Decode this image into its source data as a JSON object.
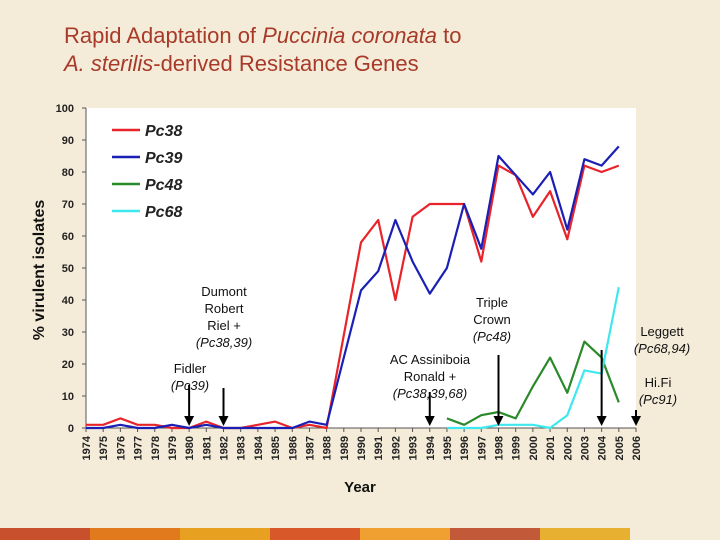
{
  "slide": {
    "title_part1": "Rapid Adaptation of ",
    "title_italic1": "Puccinia coronata",
    "title_part2": " to",
    "title_italic2": "A. sterilis",
    "title_part3": "-derived Resistance Genes"
  },
  "footer_colors": [
    "#c9502d",
    "#e07a1c",
    "#e8a020",
    "#d8582a",
    "#f0a030",
    "#c25a3a",
    "#e8b030"
  ],
  "chart_data": {
    "type": "line",
    "xlabel": "Year",
    "ylabel": "% virulent isolates",
    "ylim": [
      0,
      100
    ],
    "yticks": [
      0,
      10,
      20,
      30,
      40,
      50,
      60,
      70,
      80,
      90,
      100
    ],
    "xlim": [
      1974,
      2006
    ],
    "xticks": [
      "1974",
      "1975",
      "1976",
      "1977",
      "1978",
      "1979",
      "1980",
      "1981",
      "1982",
      "1983",
      "1984",
      "1985",
      "1986",
      "1987",
      "1988",
      "1989",
      "1990",
      "1991",
      "1992",
      "1993",
      "1994",
      "1995",
      "1996",
      "1997",
      "1998",
      "1999",
      "2000",
      "2001",
      "2002",
      "2003",
      "2004",
      "2005",
      "2006"
    ],
    "legend_position": "top-left",
    "series": [
      {
        "name": "Pc38",
        "color": "#e8232a",
        "x": [
          1974,
          1975,
          1976,
          1977,
          1978,
          1979,
          1980,
          1981,
          1982,
          1983,
          1984,
          1985,
          1986,
          1987,
          1988,
          1990,
          1991,
          1992,
          1993,
          1994,
          1996,
          1997,
          1998,
          1999,
          2000,
          2001,
          2002,
          2003,
          2004,
          2005
        ],
        "y": [
          1,
          1,
          3,
          1,
          1,
          0,
          0,
          2,
          0,
          0,
          1,
          2,
          0,
          1,
          0,
          58,
          65,
          40,
          66,
          70,
          70,
          52,
          82,
          79,
          66,
          74,
          59,
          82,
          80,
          82
        ]
      },
      {
        "name": "Pc39",
        "color": "#1a1fb5",
        "x": [
          1974,
          1975,
          1976,
          1977,
          1978,
          1979,
          1980,
          1981,
          1982,
          1983,
          1984,
          1985,
          1986,
          1987,
          1988,
          1990,
          1991,
          1992,
          1993,
          1994,
          1995,
          1996,
          1997,
          1998,
          1999,
          2000,
          2001,
          2002,
          2003,
          2004,
          2005
        ],
        "y": [
          0,
          0,
          1,
          0,
          0,
          1,
          0,
          1,
          0,
          0,
          0,
          0,
          0,
          2,
          1,
          43,
          49,
          65,
          52,
          42,
          50,
          70,
          56,
          85,
          79,
          73,
          80,
          62,
          84,
          82,
          88
        ]
      },
      {
        "name": "Pc48",
        "color": "#2a8a2a",
        "x": [
          1995,
          1996,
          1997,
          1998,
          1999,
          2000,
          2001,
          2002,
          2003,
          2004,
          2005
        ],
        "y": [
          3,
          1,
          4,
          5,
          3,
          13,
          22,
          11,
          27,
          22,
          8
        ]
      },
      {
        "name": "Pc68",
        "color": "#3ee8ee",
        "x": [
          1995,
          1996,
          1997,
          1998,
          1999,
          2000,
          2001,
          2002,
          2003,
          2004,
          2005
        ],
        "y": [
          0,
          0,
          0,
          1,
          1,
          1,
          0,
          4,
          18,
          17,
          44
        ]
      }
    ],
    "annotations": [
      {
        "label": [
          "Fidler",
          "(Pc39)"
        ],
        "arrow_year": 1980
      },
      {
        "label": [
          "Dumont",
          "Robert",
          "Riel +",
          "(Pc38,39)"
        ],
        "arrow_year": 1982
      },
      {
        "label": [
          "AC Assiniboia",
          "Ronald +",
          "(Pc38,39,68)"
        ],
        "arrow_year": 1994
      },
      {
        "label": [
          "Triple",
          "Crown",
          "(Pc48)"
        ],
        "arrow_year": 1998
      },
      {
        "label": [
          "Leggett",
          "(Pc68,94)"
        ],
        "arrow_year": 2004
      },
      {
        "label": [
          "Hi.Fi",
          "(Pc91)"
        ],
        "arrow_year": 2006
      }
    ]
  }
}
